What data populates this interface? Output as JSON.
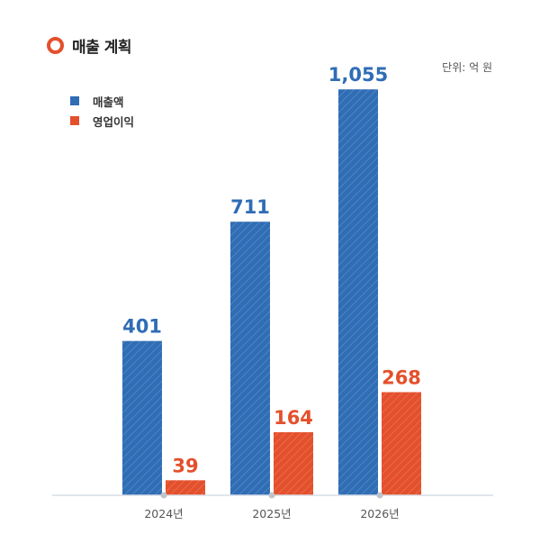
{
  "header": {
    "title": "매출 계획",
    "unit": "단위: 억 원"
  },
  "colors": {
    "revenue": "#2f6db5",
    "profit": "#e4502c",
    "axis": "#d9dde6",
    "tick_text": "#555555"
  },
  "chart_data": {
    "type": "bar",
    "title": "매출 계획",
    "categories": [
      "2024년",
      "2025년",
      "2026년"
    ],
    "series": [
      {
        "name": "매출액",
        "values": [
          401,
          711,
          1055
        ],
        "labels": [
          "401",
          "711",
          "1,055"
        ],
        "color": "#2f6db5"
      },
      {
        "name": "영업이익",
        "values": [
          39,
          164,
          268
        ],
        "labels": [
          "39",
          "164",
          "268"
        ],
        "color": "#e4502c"
      }
    ],
    "xlabel": "",
    "ylabel": "",
    "ylim": [
      0,
      1100
    ],
    "grid": false,
    "legend": "top-left",
    "bar_fill": "diagonal-hatch"
  }
}
